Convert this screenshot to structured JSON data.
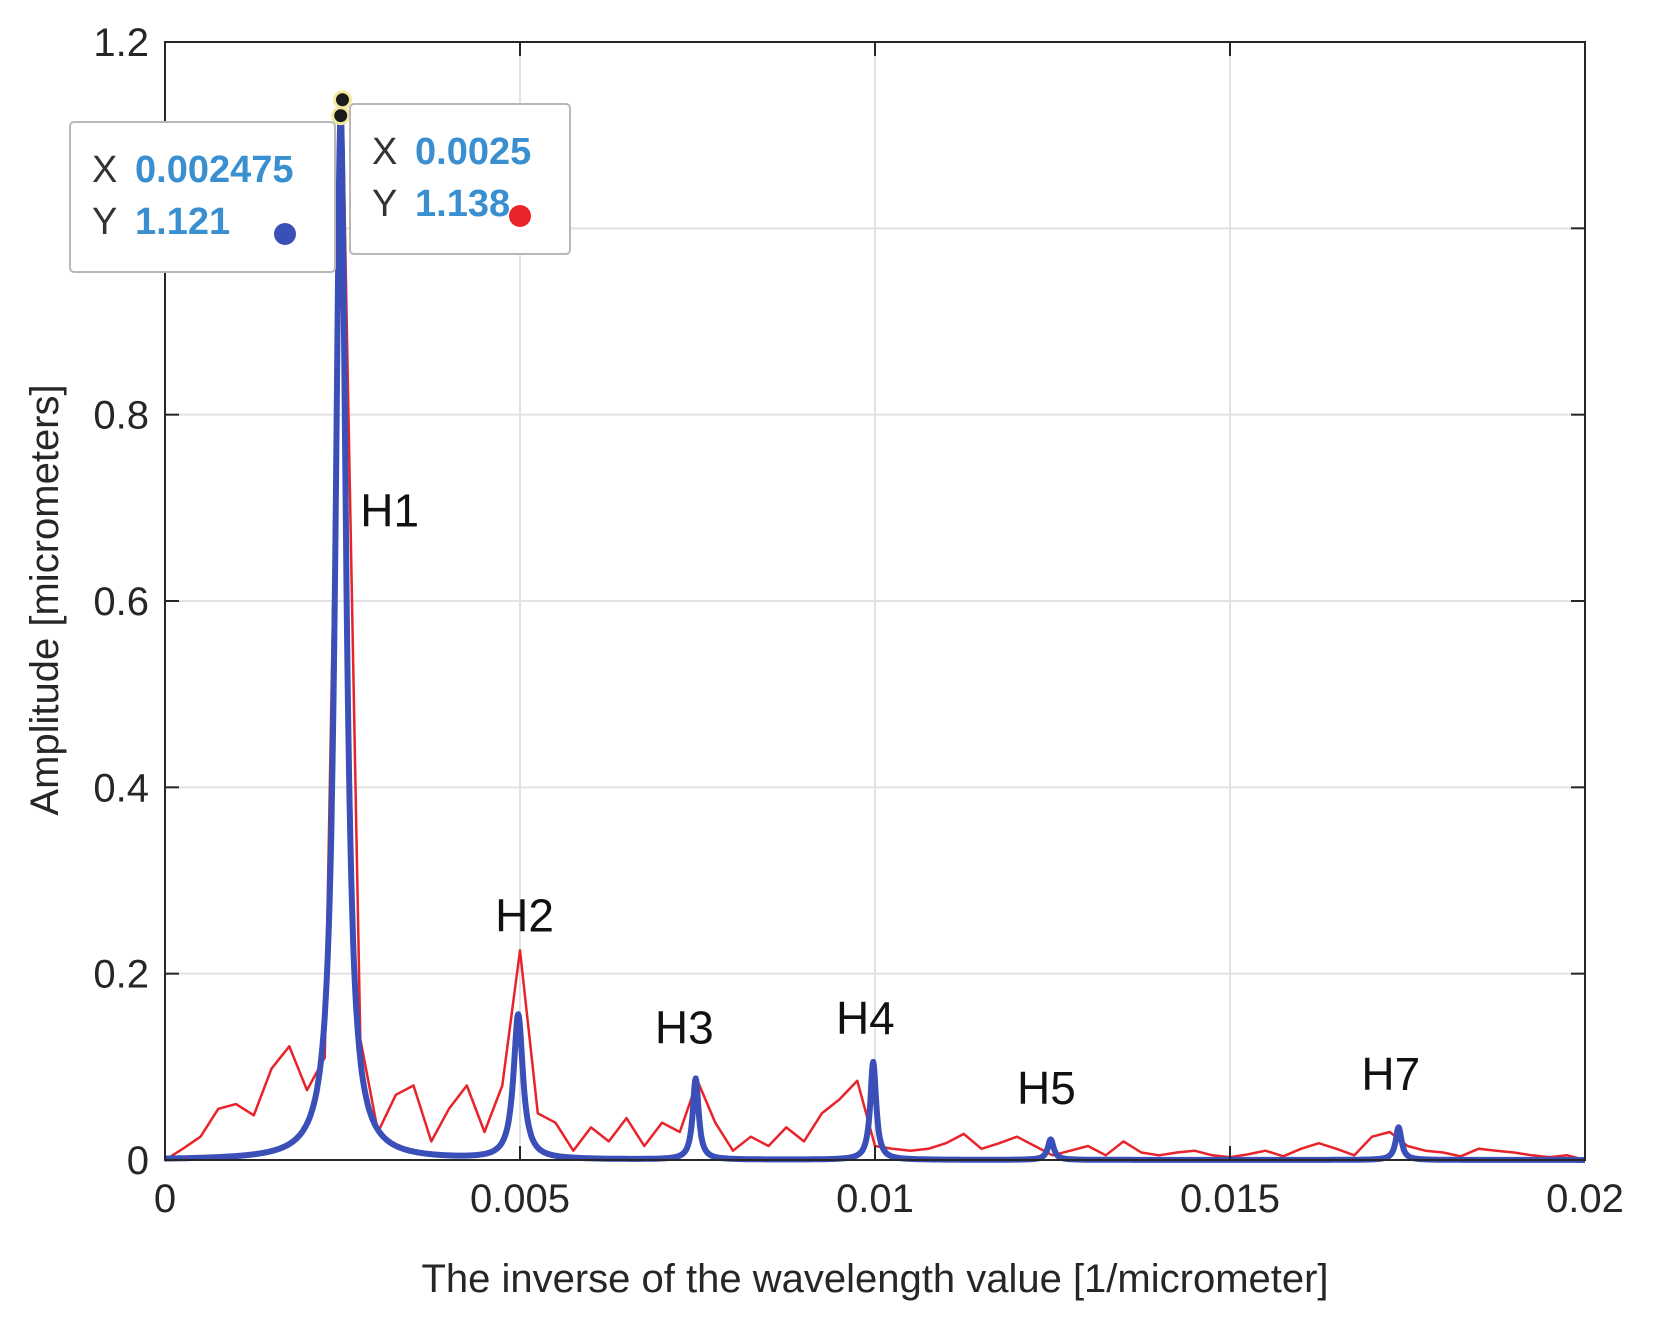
{
  "chart_data": {
    "type": "line",
    "xlabel": "The inverse of the wavelength value [1/micrometer]",
    "ylabel": "Amplitude [micrometers]",
    "xlim": [
      0,
      0.02
    ],
    "ylim": [
      0,
      1.2
    ],
    "xticks": [
      0,
      0.005,
      0.01,
      0.015,
      0.02
    ],
    "xtick_labels": [
      "0",
      "0.005",
      "0.01",
      "0.015",
      "0.02"
    ],
    "yticks": [
      0,
      0.2,
      0.4,
      0.6,
      0.8,
      1.0,
      1.2
    ],
    "ytick_labels": [
      "0",
      "0.2",
      "0.4",
      "0.6",
      "0.8",
      "",
      "1.2"
    ],
    "grid": true,
    "colors": {
      "red_series": "#e8232a",
      "blue_series": "#3a4fb8",
      "tooltip_value": "#3a8fd0"
    },
    "series": [
      {
        "color": "#e8232a",
        "points": [
          [
            0,
            0.0
          ],
          [
            0.00025,
            0.012
          ],
          [
            0.0005,
            0.025
          ],
          [
            0.00075,
            0.055
          ],
          [
            0.001,
            0.06
          ],
          [
            0.00125,
            0.048
          ],
          [
            0.0015,
            0.098
          ],
          [
            0.00175,
            0.122
          ],
          [
            0.002,
            0.075
          ],
          [
            0.00225,
            0.11
          ],
          [
            0.0025,
            1.138
          ],
          [
            0.00275,
            0.13
          ],
          [
            0.003,
            0.03
          ],
          [
            0.00325,
            0.07
          ],
          [
            0.0035,
            0.08
          ],
          [
            0.00375,
            0.02
          ],
          [
            0.004,
            0.055
          ],
          [
            0.00425,
            0.08
          ],
          [
            0.0045,
            0.03
          ],
          [
            0.00475,
            0.08
          ],
          [
            0.005,
            0.225
          ],
          [
            0.00525,
            0.05
          ],
          [
            0.0055,
            0.04
          ],
          [
            0.00575,
            0.01
          ],
          [
            0.006,
            0.035
          ],
          [
            0.00625,
            0.02
          ],
          [
            0.0065,
            0.045
          ],
          [
            0.00675,
            0.015
          ],
          [
            0.007,
            0.04
          ],
          [
            0.00725,
            0.03
          ],
          [
            0.0075,
            0.085
          ],
          [
            0.00775,
            0.04
          ],
          [
            0.008,
            0.01
          ],
          [
            0.00825,
            0.025
          ],
          [
            0.0085,
            0.015
          ],
          [
            0.00875,
            0.035
          ],
          [
            0.009,
            0.02
          ],
          [
            0.00925,
            0.05
          ],
          [
            0.0095,
            0.065
          ],
          [
            0.00975,
            0.085
          ],
          [
            0.01,
            0.015
          ],
          [
            0.01025,
            0.012
          ],
          [
            0.0105,
            0.01
          ],
          [
            0.01075,
            0.012
          ],
          [
            0.011,
            0.018
          ],
          [
            0.01125,
            0.028
          ],
          [
            0.0115,
            0.012
          ],
          [
            0.01175,
            0.018
          ],
          [
            0.012,
            0.025
          ],
          [
            0.01225,
            0.015
          ],
          [
            0.0125,
            0.005
          ],
          [
            0.01275,
            0.01
          ],
          [
            0.013,
            0.015
          ],
          [
            0.01325,
            0.005
          ],
          [
            0.0135,
            0.02
          ],
          [
            0.01375,
            0.008
          ],
          [
            0.014,
            0.005
          ],
          [
            0.01425,
            0.008
          ],
          [
            0.0145,
            0.01
          ],
          [
            0.01475,
            0.005
          ],
          [
            0.015,
            0.003
          ],
          [
            0.01525,
            0.006
          ],
          [
            0.0155,
            0.01
          ],
          [
            0.01575,
            0.004
          ],
          [
            0.016,
            0.012
          ],
          [
            0.01625,
            0.018
          ],
          [
            0.0165,
            0.012
          ],
          [
            0.01675,
            0.005
          ],
          [
            0.017,
            0.025
          ],
          [
            0.01725,
            0.03
          ],
          [
            0.0175,
            0.015
          ],
          [
            0.01775,
            0.01
          ],
          [
            0.018,
            0.008
          ],
          [
            0.01825,
            0.004
          ],
          [
            0.0185,
            0.012
          ],
          [
            0.01875,
            0.01
          ],
          [
            0.019,
            0.008
          ],
          [
            0.01925,
            0.005
          ],
          [
            0.0195,
            0.003
          ],
          [
            0.01975,
            0.005
          ],
          [
            0.02,
            0.0
          ]
        ]
      },
      {
        "color": "#3a4fb8",
        "peaks": [
          {
            "x": 0.002475,
            "y": 1.121,
            "width": 9e-05
          },
          {
            "x": 0.004975,
            "y": 0.155,
            "width": 8e-05
          },
          {
            "x": 0.007475,
            "y": 0.087,
            "width": 5e-05
          },
          {
            "x": 0.009975,
            "y": 0.105,
            "width": 5e-05
          },
          {
            "x": 0.012475,
            "y": 0.022,
            "width": 5e-05
          },
          {
            "x": 0.017375,
            "y": 0.035,
            "width": 5e-05
          }
        ]
      }
    ],
    "annotations": [
      {
        "text": "H1",
        "x": 0.00275,
        "y": 0.68
      },
      {
        "text": "H2",
        "x": 0.00465,
        "y": 0.245
      },
      {
        "text": "H3",
        "x": 0.0069,
        "y": 0.125
      },
      {
        "text": "H4",
        "x": 0.00945,
        "y": 0.135
      },
      {
        "text": "H5",
        "x": 0.012,
        "y": 0.06
      },
      {
        "text": "H7",
        "x": 0.01685,
        "y": 0.075
      }
    ],
    "datatips": [
      {
        "x_key": "X",
        "x_value": "0.002475",
        "y_key": "Y",
        "y_value": "1.121",
        "dot_color": "#3a4fb8",
        "anchor": [
          0.002475,
          1.121
        ]
      },
      {
        "x_key": "X",
        "x_value": "0.0025",
        "y_key": "Y",
        "y_value": "1.138",
        "dot_color": "#e8232a",
        "anchor": [
          0.0025,
          1.138
        ]
      }
    ]
  }
}
